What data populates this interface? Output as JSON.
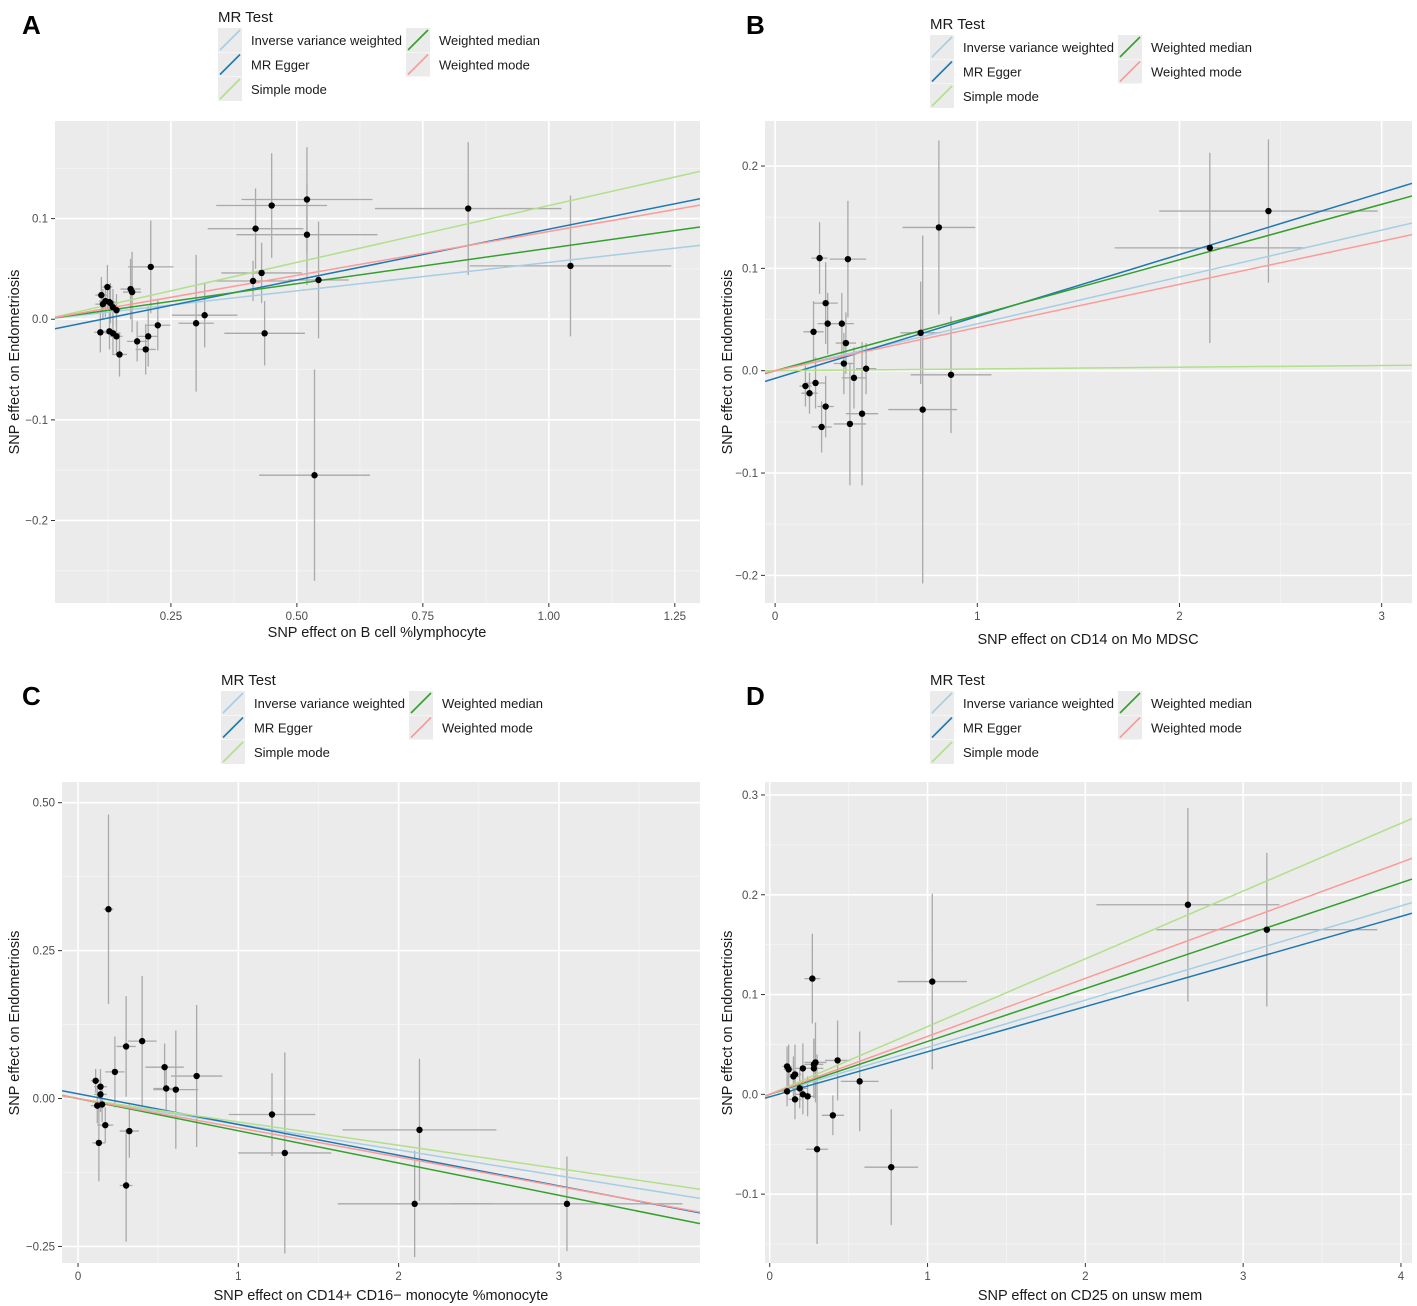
{
  "legend": {
    "title": "MR Test",
    "entries": [
      {
        "key": "ivw",
        "label": "Inverse variance weighted",
        "color": "#A6CEE3"
      },
      {
        "key": "egger",
        "label": "MR Egger",
        "color": "#1F78B4"
      },
      {
        "key": "simple",
        "label": "Simple mode",
        "color": "#B2DF8A"
      },
      {
        "key": "wmedian",
        "label": "Weighted median",
        "color": "#33A02C"
      },
      {
        "key": "wmode",
        "label": "Weighted mode",
        "color": "#FB9A99"
      }
    ]
  },
  "chart_data": [
    {
      "panel": "A",
      "type": "scatter",
      "xlabel": "SNP effect on B cell %lymphocyte",
      "ylabel": "SNP effect on Endometriosis",
      "xlim": [
        0.02,
        1.3
      ],
      "ylim": [
        -0.282,
        0.197
      ],
      "xticks": [
        0.25,
        0.5,
        0.75,
        1.0,
        1.25
      ],
      "xtick_labels": [
        "0.25",
        "0.50",
        "0.75",
        "1.00",
        "1.25"
      ],
      "yticks": [
        -0.2,
        -0.1,
        0.0,
        0.1
      ],
      "ytick_labels": [
        "−0.2",
        "−0.1",
        "0.0",
        "0.1"
      ],
      "points": [
        {
          "x": 0.112,
          "y": 0.024,
          "xse": 0.012,
          "yse": 0.018
        },
        {
          "x": 0.124,
          "y": 0.032,
          "xse": 0.01,
          "yse": 0.022
        },
        {
          "x": 0.115,
          "y": 0.015,
          "xse": 0.015,
          "yse": 0.015
        },
        {
          "x": 0.12,
          "y": 0.018,
          "xse": 0.013,
          "yse": 0.016
        },
        {
          "x": 0.128,
          "y": 0.017,
          "xse": 0.012,
          "yse": 0.015
        },
        {
          "x": 0.13,
          "y": 0.016,
          "xse": 0.015,
          "yse": 0.02
        },
        {
          "x": 0.135,
          "y": 0.012,
          "xse": 0.012,
          "yse": 0.018
        },
        {
          "x": 0.142,
          "y": 0.009,
          "xse": 0.01,
          "yse": 0.016
        },
        {
          "x": 0.11,
          "y": -0.013,
          "xse": 0.012,
          "yse": 0.02
        },
        {
          "x": 0.128,
          "y": -0.012,
          "xse": 0.013,
          "yse": 0.018
        },
        {
          "x": 0.135,
          "y": -0.014,
          "xse": 0.015,
          "yse": 0.02
        },
        {
          "x": 0.142,
          "y": -0.017,
          "xse": 0.012,
          "yse": 0.018
        },
        {
          "x": 0.148,
          "y": -0.035,
          "xse": 0.015,
          "yse": 0.022
        },
        {
          "x": 0.17,
          "y": 0.03,
          "xse": 0.02,
          "yse": 0.03
        },
        {
          "x": 0.173,
          "y": 0.027,
          "xse": 0.018,
          "yse": 0.04
        },
        {
          "x": 0.183,
          "y": -0.022,
          "xse": 0.02,
          "yse": 0.02
        },
        {
          "x": 0.2,
          "y": -0.03,
          "xse": 0.02,
          "yse": 0.025
        },
        {
          "x": 0.205,
          "y": -0.017,
          "xse": 0.02,
          "yse": 0.03
        },
        {
          "x": 0.21,
          "y": 0.052,
          "xse": 0.045,
          "yse": 0.046
        },
        {
          "x": 0.224,
          "y": -0.006,
          "xse": 0.025,
          "yse": 0.025
        },
        {
          "x": 0.3,
          "y": -0.004,
          "xse": 0.035,
          "yse": 0.068
        },
        {
          "x": 0.317,
          "y": 0.004,
          "xse": 0.065,
          "yse": 0.032
        },
        {
          "x": 0.413,
          "y": 0.038,
          "xse": 0.075,
          "yse": 0.02
        },
        {
          "x": 0.418,
          "y": 0.09,
          "xse": 0.095,
          "yse": 0.04
        },
        {
          "x": 0.43,
          "y": 0.046,
          "xse": 0.08,
          "yse": 0.03
        },
        {
          "x": 0.436,
          "y": -0.014,
          "xse": 0.08,
          "yse": 0.032
        },
        {
          "x": 0.45,
          "y": 0.113,
          "xse": 0.11,
          "yse": 0.052
        },
        {
          "x": 0.52,
          "y": 0.119,
          "xse": 0.13,
          "yse": 0.052
        },
        {
          "x": 0.52,
          "y": 0.084,
          "xse": 0.14,
          "yse": 0.05
        },
        {
          "x": 0.543,
          "y": 0.039,
          "xse": 0.06,
          "yse": 0.058
        },
        {
          "x": 0.535,
          "y": -0.155,
          "xse": 0.11,
          "yse": 0.105
        },
        {
          "x": 0.84,
          "y": 0.11,
          "xse": 0.185,
          "yse": 0.066
        },
        {
          "x": 1.043,
          "y": 0.053,
          "xse": 0.2,
          "yse": 0.07
        }
      ],
      "lines": {
        "ivw": {
          "intercept": 0.0,
          "slope": 0.0565
        },
        "egger": {
          "intercept": -0.0115,
          "slope": 0.101
        },
        "simple": {
          "intercept": 0.0,
          "slope": 0.113
        },
        "wmedian": {
          "intercept": 0.0,
          "slope": 0.0705
        },
        "wmode": {
          "intercept": 0.0,
          "slope": 0.0872
        }
      }
    },
    {
      "panel": "B",
      "type": "scatter",
      "xlabel": "SNP effect on CD14 on Mo MDSC",
      "ylabel": "SNP effect on Endometriosis",
      "xlim": [
        -0.05,
        3.15
      ],
      "ylim": [
        -0.227,
        0.244
      ],
      "xticks": [
        0,
        1,
        2,
        3
      ],
      "xtick_labels": [
        "0",
        "1",
        "2",
        "3"
      ],
      "yticks": [
        -0.2,
        -0.1,
        0.0,
        0.1,
        0.2
      ],
      "ytick_labels": [
        "−0.2",
        "−0.1",
        "0.0",
        "0.1",
        "0.2"
      ],
      "points": [
        {
          "x": 0.15,
          "y": -0.015,
          "xse": 0.03,
          "yse": 0.02
        },
        {
          "x": 0.17,
          "y": -0.022,
          "xse": 0.04,
          "yse": 0.02
        },
        {
          "x": 0.19,
          "y": 0.038,
          "xse": 0.05,
          "yse": 0.03
        },
        {
          "x": 0.2,
          "y": -0.012,
          "xse": 0.05,
          "yse": 0.025
        },
        {
          "x": 0.22,
          "y": 0.11,
          "xse": 0.04,
          "yse": 0.035
        },
        {
          "x": 0.23,
          "y": -0.055,
          "xse": 0.05,
          "yse": 0.025
        },
        {
          "x": 0.25,
          "y": -0.035,
          "xse": 0.04,
          "yse": 0.03
        },
        {
          "x": 0.25,
          "y": 0.066,
          "xse": 0.06,
          "yse": 0.04
        },
        {
          "x": 0.26,
          "y": 0.046,
          "xse": 0.05,
          "yse": 0.03
        },
        {
          "x": 0.33,
          "y": 0.046,
          "xse": 0.06,
          "yse": 0.03
        },
        {
          "x": 0.34,
          "y": 0.007,
          "xse": 0.05,
          "yse": 0.03
        },
        {
          "x": 0.35,
          "y": 0.027,
          "xse": 0.05,
          "yse": 0.03
        },
        {
          "x": 0.36,
          "y": 0.109,
          "xse": 0.09,
          "yse": 0.057
        },
        {
          "x": 0.37,
          "y": -0.052,
          "xse": 0.08,
          "yse": 0.06
        },
        {
          "x": 0.39,
          "y": -0.007,
          "xse": 0.06,
          "yse": 0.03
        },
        {
          "x": 0.43,
          "y": -0.042,
          "xse": 0.08,
          "yse": 0.07
        },
        {
          "x": 0.45,
          "y": 0.002,
          "xse": 0.05,
          "yse": 0.025
        },
        {
          "x": 0.72,
          "y": 0.037,
          "xse": 0.1,
          "yse": 0.05
        },
        {
          "x": 0.73,
          "y": -0.038,
          "xse": 0.17,
          "yse": 0.17
        },
        {
          "x": 0.81,
          "y": 0.14,
          "xse": 0.18,
          "yse": 0.085
        },
        {
          "x": 0.87,
          "y": -0.004,
          "xse": 0.2,
          "yse": 0.057
        },
        {
          "x": 2.15,
          "y": 0.12,
          "xse": 0.47,
          "yse": 0.093
        },
        {
          "x": 2.44,
          "y": 0.156,
          "xse": 0.54,
          "yse": 0.07
        }
      ],
      "lines": {
        "ivw": {
          "intercept": 0.0,
          "slope": 0.0458
        },
        "egger": {
          "intercept": -0.0075,
          "slope": 0.0605
        },
        "simple": {
          "intercept": 0.0,
          "slope": 0.0017
        },
        "wmedian": {
          "intercept": 0.0,
          "slope": 0.0542
        },
        "wmode": {
          "intercept": 0.0,
          "slope": 0.0422
        }
      }
    },
    {
      "panel": "C",
      "type": "scatter",
      "xlabel": "SNP effect on CD14+ CD16− monocyte %monocyte",
      "ylabel": "SNP effect on Endometriosis",
      "xlim": [
        -0.1,
        3.88
      ],
      "ylim": [
        -0.278,
        0.535
      ],
      "xticks": [
        0,
        1,
        2,
        3
      ],
      "xtick_labels": [
        "0",
        "1",
        "2",
        "3"
      ],
      "yticks": [
        -0.25,
        0.0,
        0.25,
        0.5
      ],
      "ytick_labels": [
        "−0.25",
        "0.00",
        "0.25",
        "0.50"
      ],
      "points": [
        {
          "x": 0.11,
          "y": 0.03,
          "xse": 0.03,
          "yse": 0.02
        },
        {
          "x": 0.12,
          "y": -0.012,
          "xse": 0.04,
          "yse": 0.03
        },
        {
          "x": 0.13,
          "y": -0.075,
          "xse": 0.04,
          "yse": 0.065
        },
        {
          "x": 0.14,
          "y": 0.02,
          "xse": 0.04,
          "yse": 0.03
        },
        {
          "x": 0.14,
          "y": 0.007,
          "xse": 0.04,
          "yse": 0.03
        },
        {
          "x": 0.15,
          "y": -0.01,
          "xse": 0.04,
          "yse": 0.03
        },
        {
          "x": 0.17,
          "y": -0.045,
          "xse": 0.05,
          "yse": 0.03
        },
        {
          "x": 0.19,
          "y": 0.32,
          "xse": 0.03,
          "yse": 0.16
        },
        {
          "x": 0.23,
          "y": 0.045,
          "xse": 0.06,
          "yse": 0.06
        },
        {
          "x": 0.3,
          "y": 0.088,
          "xse": 0.06,
          "yse": 0.085
        },
        {
          "x": 0.3,
          "y": -0.147,
          "xse": 0.04,
          "yse": 0.095
        },
        {
          "x": 0.32,
          "y": -0.055,
          "xse": 0.06,
          "yse": 0.045
        },
        {
          "x": 0.4,
          "y": 0.097,
          "xse": 0.09,
          "yse": 0.11
        },
        {
          "x": 0.54,
          "y": 0.053,
          "xse": 0.12,
          "yse": 0.04
        },
        {
          "x": 0.55,
          "y": 0.017,
          "xse": 0.08,
          "yse": 0.04
        },
        {
          "x": 0.61,
          "y": 0.015,
          "xse": 0.14,
          "yse": 0.1
        },
        {
          "x": 0.74,
          "y": 0.038,
          "xse": 0.16,
          "yse": 0.12
        },
        {
          "x": 1.21,
          "y": -0.027,
          "xse": 0.27,
          "yse": 0.07
        },
        {
          "x": 1.29,
          "y": -0.092,
          "xse": 0.29,
          "yse": 0.17
        },
        {
          "x": 2.1,
          "y": -0.178,
          "xse": 0.48,
          "yse": 0.09
        },
        {
          "x": 2.13,
          "y": -0.053,
          "xse": 0.48,
          "yse": 0.12
        },
        {
          "x": 3.05,
          "y": -0.178,
          "xse": 0.72,
          "yse": 0.08
        }
      ],
      "lines": {
        "ivw": {
          "intercept": 0.0,
          "slope": -0.0435
        },
        "egger": {
          "intercept": 0.008,
          "slope": -0.0519
        },
        "simple": {
          "intercept": 0.0,
          "slope": -0.0395
        },
        "wmedian": {
          "intercept": 0.0,
          "slope": -0.0545
        },
        "wmode": {
          "intercept": 0.0,
          "slope": -0.0495
        }
      }
    },
    {
      "panel": "D",
      "type": "scatter",
      "xlabel": "SNP effect on CD25 on unsw mem",
      "ylabel": "SNP effect on Endometriosis",
      "xlim": [
        -0.03,
        4.07
      ],
      "ylim": [
        -0.169,
        0.313
      ],
      "xticks": [
        0,
        1,
        2,
        3,
        4
      ],
      "xtick_labels": [
        "0",
        "1",
        "2",
        "3",
        "4"
      ],
      "yticks": [
        -0.1,
        0.0,
        0.1,
        0.2,
        0.3
      ],
      "ytick_labels": [
        "−0.1",
        "0.0",
        "0.1",
        "0.2",
        "0.3"
      ],
      "points": [
        {
          "x": 0.11,
          "y": 0.028,
          "xse": 0.03,
          "yse": 0.02
        },
        {
          "x": 0.12,
          "y": 0.025,
          "xse": 0.03,
          "yse": 0.025
        },
        {
          "x": 0.11,
          "y": 0.003,
          "xse": 0.03,
          "yse": 0.015
        },
        {
          "x": 0.15,
          "y": 0.018,
          "xse": 0.04,
          "yse": 0.02
        },
        {
          "x": 0.16,
          "y": 0.02,
          "xse": 0.04,
          "yse": 0.03
        },
        {
          "x": 0.16,
          "y": -0.005,
          "xse": 0.04,
          "yse": 0.02
        },
        {
          "x": 0.19,
          "y": 0.006,
          "xse": 0.05,
          "yse": 0.02
        },
        {
          "x": 0.21,
          "y": 0.0,
          "xse": 0.05,
          "yse": 0.02
        },
        {
          "x": 0.21,
          "y": 0.026,
          "xse": 0.05,
          "yse": 0.025
        },
        {
          "x": 0.24,
          "y": -0.002,
          "xse": 0.05,
          "yse": 0.02
        },
        {
          "x": 0.27,
          "y": 0.116,
          "xse": 0.05,
          "yse": 0.045
        },
        {
          "x": 0.28,
          "y": 0.026,
          "xse": 0.06,
          "yse": 0.03
        },
        {
          "x": 0.28,
          "y": 0.03,
          "xse": 0.06,
          "yse": 0.025
        },
        {
          "x": 0.29,
          "y": 0.032,
          "xse": 0.07,
          "yse": 0.04
        },
        {
          "x": 0.3,
          "y": -0.055,
          "xse": 0.07,
          "yse": 0.095
        },
        {
          "x": 0.4,
          "y": -0.021,
          "xse": 0.07,
          "yse": 0.02
        },
        {
          "x": 0.43,
          "y": 0.034,
          "xse": 0.08,
          "yse": 0.04
        },
        {
          "x": 0.57,
          "y": 0.013,
          "xse": 0.12,
          "yse": 0.05
        },
        {
          "x": 0.77,
          "y": -0.073,
          "xse": 0.17,
          "yse": 0.058
        },
        {
          "x": 1.03,
          "y": 0.113,
          "xse": 0.22,
          "yse": 0.088
        },
        {
          "x": 2.65,
          "y": 0.19,
          "xse": 0.58,
          "yse": 0.097
        },
        {
          "x": 3.15,
          "y": 0.165,
          "xse": 0.7,
          "yse": 0.077
        }
      ],
      "lines": {
        "ivw": {
          "intercept": 0.0,
          "slope": 0.0472
        },
        "egger": {
          "intercept": -0.0025,
          "slope": 0.0452
        },
        "simple": {
          "intercept": 0.0,
          "slope": 0.0679
        },
        "wmedian": {
          "intercept": 0.0,
          "slope": 0.053
        },
        "wmode": {
          "intercept": 0.0,
          "slope": 0.0581
        }
      }
    }
  ]
}
